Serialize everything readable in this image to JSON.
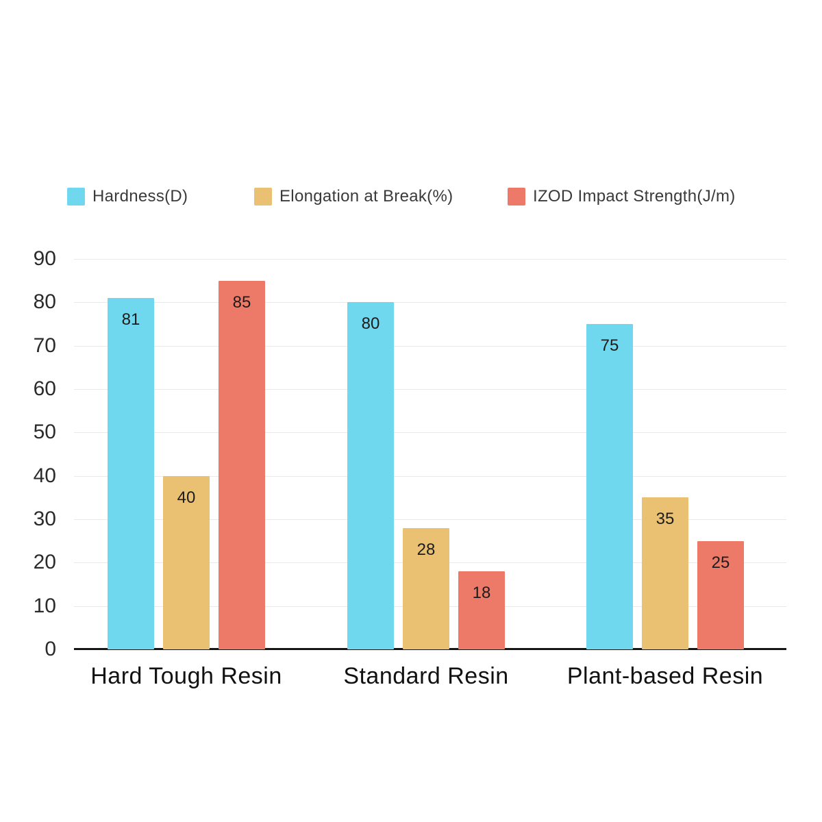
{
  "chart_data": {
    "type": "bar",
    "title": "",
    "xlabel": "",
    "ylabel": "",
    "categories": [
      "Hard Tough Resin",
      "Standard Resin",
      "Plant-based Resin"
    ],
    "series": [
      {
        "name": "Hardness(D)",
        "color": "#6FD8EF",
        "values": [
          81,
          80,
          75
        ]
      },
      {
        "name": "Elongation at Break(%)",
        "color": "#EAC172",
        "values": [
          40,
          28,
          35
        ]
      },
      {
        "name": "IZOD Impact Strength(J/m)",
        "color": "#ED7A69",
        "values": [
          85,
          18,
          25
        ]
      }
    ],
    "ylim": [
      0,
      90
    ],
    "yticks": [
      0,
      10,
      20,
      30,
      40,
      50,
      60,
      70,
      80,
      90
    ],
    "grid": true,
    "legend_position": "top",
    "value_labels": true,
    "colors": {
      "gridline": "#e9e9e9",
      "axis_line": "#161616",
      "tick_text": "#2b2b2b",
      "value_text": "#1c1c1c",
      "category_text": "#111111",
      "background": "#ffffff"
    }
  }
}
